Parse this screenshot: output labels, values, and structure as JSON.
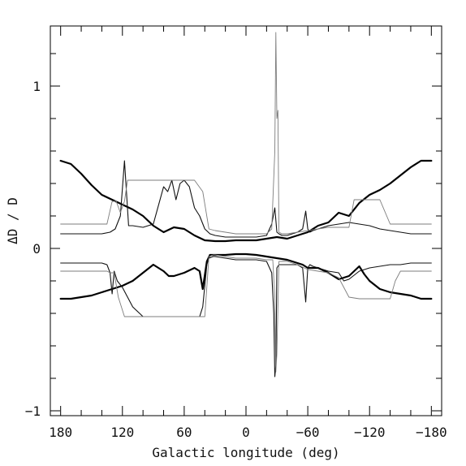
{
  "chart_data": {
    "type": "line",
    "title": "",
    "xlabel": "Galactic longitude (deg)",
    "ylabel": "ΔD / D",
    "xlim": [
      190,
      -190
    ],
    "ylim": [
      -1.03,
      1.37
    ],
    "x_ticks": [
      180,
      120,
      60,
      0,
      -60,
      -120,
      -180
    ],
    "x_tick_labels": [
      "180",
      "120",
      "60",
      "0",
      "−60",
      "−120",
      "−180"
    ],
    "y_ticks": [
      1,
      0,
      -1
    ],
    "y_tick_labels": [
      "1",
      "0",
      "−1"
    ],
    "grid": false,
    "legend": "none",
    "series": [
      {
        "style": "thick",
        "x": [
          180,
          170,
          160,
          150,
          140,
          130,
          120,
          110,
          100,
          90,
          80,
          70,
          60,
          50,
          40,
          30,
          20,
          10,
          0,
          -10,
          -20,
          -30,
          -40,
          -50,
          -60,
          -70,
          -80,
          -90,
          -100,
          -110,
          -120,
          -130,
          -140,
          -150,
          -160,
          -170,
          -180
        ],
        "y": [
          0.54,
          0.52,
          0.46,
          0.39,
          0.33,
          0.3,
          0.27,
          0.24,
          0.2,
          0.14,
          0.1,
          0.13,
          0.12,
          0.08,
          0.05,
          0.045,
          0.045,
          0.05,
          0.05,
          0.05,
          0.06,
          0.07,
          0.06,
          0.08,
          0.1,
          0.14,
          0.16,
          0.22,
          0.2,
          0.28,
          0.33,
          0.36,
          0.4,
          0.45,
          0.5,
          0.54,
          0.54
        ]
      },
      {
        "style": "medium",
        "x": [
          180,
          160,
          140,
          132,
          127,
          122,
          118,
          114,
          110,
          100,
          90,
          80,
          76,
          72,
          68,
          64,
          60,
          55,
          50,
          45,
          40,
          35,
          30,
          20,
          10,
          0,
          -10,
          -20,
          -25,
          -28,
          -30,
          -32,
          -35,
          -40,
          -50,
          -55,
          -58,
          -60,
          -62,
          -65,
          -70,
          -80,
          -90,
          -100,
          -110,
          -120,
          -130,
          -140,
          -150,
          -160,
          -170,
          -180
        ],
        "y": [
          0.09,
          0.09,
          0.09,
          0.1,
          0.12,
          0.2,
          0.54,
          0.14,
          0.14,
          0.13,
          0.15,
          0.38,
          0.35,
          0.42,
          0.3,
          0.4,
          0.42,
          0.38,
          0.25,
          0.2,
          0.12,
          0.09,
          0.08,
          0.07,
          0.07,
          0.07,
          0.07,
          0.08,
          0.15,
          0.25,
          0.1,
          0.09,
          0.08,
          0.08,
          0.1,
          0.12,
          0.23,
          0.12,
          0.1,
          0.11,
          0.12,
          0.14,
          0.15,
          0.16,
          0.15,
          0.14,
          0.12,
          0.11,
          0.1,
          0.09,
          0.09,
          0.09
        ]
      },
      {
        "style": "thin",
        "x": [
          180,
          160,
          140,
          135,
          130,
          126,
          122,
          118,
          115,
          110,
          105,
          100,
          90,
          80,
          70,
          60,
          50,
          42,
          36,
          30,
          20,
          10,
          0,
          -10,
          -20,
          -25,
          -28,
          -29,
          -30,
          -31,
          -32,
          -35,
          -40,
          -50,
          -60,
          -70,
          -80,
          -90,
          -100,
          -105,
          -110,
          -120,
          -130,
          -140,
          -150,
          -160,
          -170,
          -180
        ],
        "y": [
          0.15,
          0.15,
          0.15,
          0.15,
          0.29,
          0.29,
          0.22,
          0.29,
          0.42,
          0.42,
          0.42,
          0.42,
          0.42,
          0.42,
          0.42,
          0.42,
          0.42,
          0.35,
          0.12,
          0.11,
          0.1,
          0.09,
          0.09,
          0.09,
          0.09,
          0.12,
          0.6,
          1.33,
          0.8,
          0.85,
          0.1,
          0.09,
          0.09,
          0.1,
          0.11,
          0.12,
          0.13,
          0.13,
          0.13,
          0.3,
          0.3,
          0.3,
          0.3,
          0.15,
          0.15,
          0.15,
          0.15,
          0.15
        ]
      },
      {
        "style": "thick",
        "x": [
          180,
          170,
          160,
          150,
          140,
          130,
          120,
          110,
          100,
          90,
          80,
          75,
          70,
          60,
          50,
          45,
          42,
          38,
          35,
          30,
          20,
          10,
          0,
          -10,
          -20,
          -30,
          -40,
          -50,
          -55,
          -60,
          -70,
          -80,
          -90,
          -100,
          -110,
          -115,
          -120,
          -130,
          -140,
          -150,
          -160,
          -170,
          -180
        ],
        "y": [
          -0.31,
          -0.31,
          -0.3,
          -0.29,
          -0.27,
          -0.25,
          -0.23,
          -0.2,
          -0.15,
          -0.1,
          -0.14,
          -0.17,
          -0.17,
          -0.15,
          -0.12,
          -0.14,
          -0.25,
          -0.08,
          -0.04,
          -0.04,
          -0.04,
          -0.035,
          -0.035,
          -0.04,
          -0.05,
          -0.06,
          -0.07,
          -0.09,
          -0.1,
          -0.12,
          -0.12,
          -0.15,
          -0.19,
          -0.17,
          -0.11,
          -0.16,
          -0.2,
          -0.25,
          -0.27,
          -0.28,
          -0.29,
          -0.31,
          -0.31
        ]
      },
      {
        "style": "medium",
        "x": [
          180,
          160,
          140,
          135,
          132,
          130,
          128,
          125,
          120,
          115,
          110,
          100,
          90,
          80,
          70,
          60,
          50,
          45,
          42,
          38,
          36,
          32,
          30,
          20,
          10,
          0,
          -10,
          -20,
          -25,
          -27,
          -28,
          -29,
          -30,
          -32,
          -35,
          -40,
          -50,
          -55,
          -58,
          -60,
          -62,
          -65,
          -70,
          -80,
          -90,
          -95,
          -100,
          -110,
          -120,
          -130,
          -140,
          -150,
          -160,
          -170,
          -180
        ],
        "y": [
          -0.09,
          -0.09,
          -0.09,
          -0.1,
          -0.15,
          -0.28,
          -0.14,
          -0.2,
          -0.24,
          -0.3,
          -0.36,
          -0.42,
          -0.42,
          -0.42,
          -0.42,
          -0.42,
          -0.42,
          -0.42,
          -0.36,
          -0.1,
          -0.06,
          -0.05,
          -0.05,
          -0.06,
          -0.07,
          -0.07,
          -0.07,
          -0.08,
          -0.15,
          -0.4,
          -0.79,
          -0.72,
          -0.12,
          -0.1,
          -0.1,
          -0.1,
          -0.1,
          -0.12,
          -0.33,
          -0.12,
          -0.1,
          -0.11,
          -0.12,
          -0.14,
          -0.15,
          -0.2,
          -0.19,
          -0.14,
          -0.12,
          -0.11,
          -0.1,
          -0.1,
          -0.09,
          -0.09,
          -0.09
        ]
      },
      {
        "style": "thin",
        "x": [
          180,
          160,
          140,
          135,
          132,
          128,
          124,
          118,
          112,
          100,
          90,
          80,
          70,
          60,
          50,
          40,
          36,
          32,
          30,
          20,
          10,
          0,
          -10,
          -20,
          -26,
          -28,
          -29,
          -30,
          -32,
          -35,
          -40,
          -50,
          -60,
          -70,
          -80,
          -90,
          -100,
          -110,
          -120,
          -130,
          -140,
          -145,
          -150,
          -160,
          -170,
          -180
        ],
        "y": [
          -0.14,
          -0.14,
          -0.14,
          -0.14,
          -0.15,
          -0.15,
          -0.3,
          -0.42,
          -0.42,
          -0.42,
          -0.42,
          -0.42,
          -0.42,
          -0.42,
          -0.42,
          -0.42,
          -0.05,
          -0.04,
          -0.04,
          -0.05,
          -0.06,
          -0.06,
          -0.06,
          -0.07,
          -0.07,
          -0.3,
          -0.76,
          -0.65,
          -0.08,
          -0.08,
          -0.08,
          -0.1,
          -0.13,
          -0.14,
          -0.15,
          -0.18,
          -0.3,
          -0.31,
          -0.31,
          -0.31,
          -0.31,
          -0.2,
          -0.14,
          -0.14,
          -0.14,
          -0.14
        ]
      }
    ]
  }
}
